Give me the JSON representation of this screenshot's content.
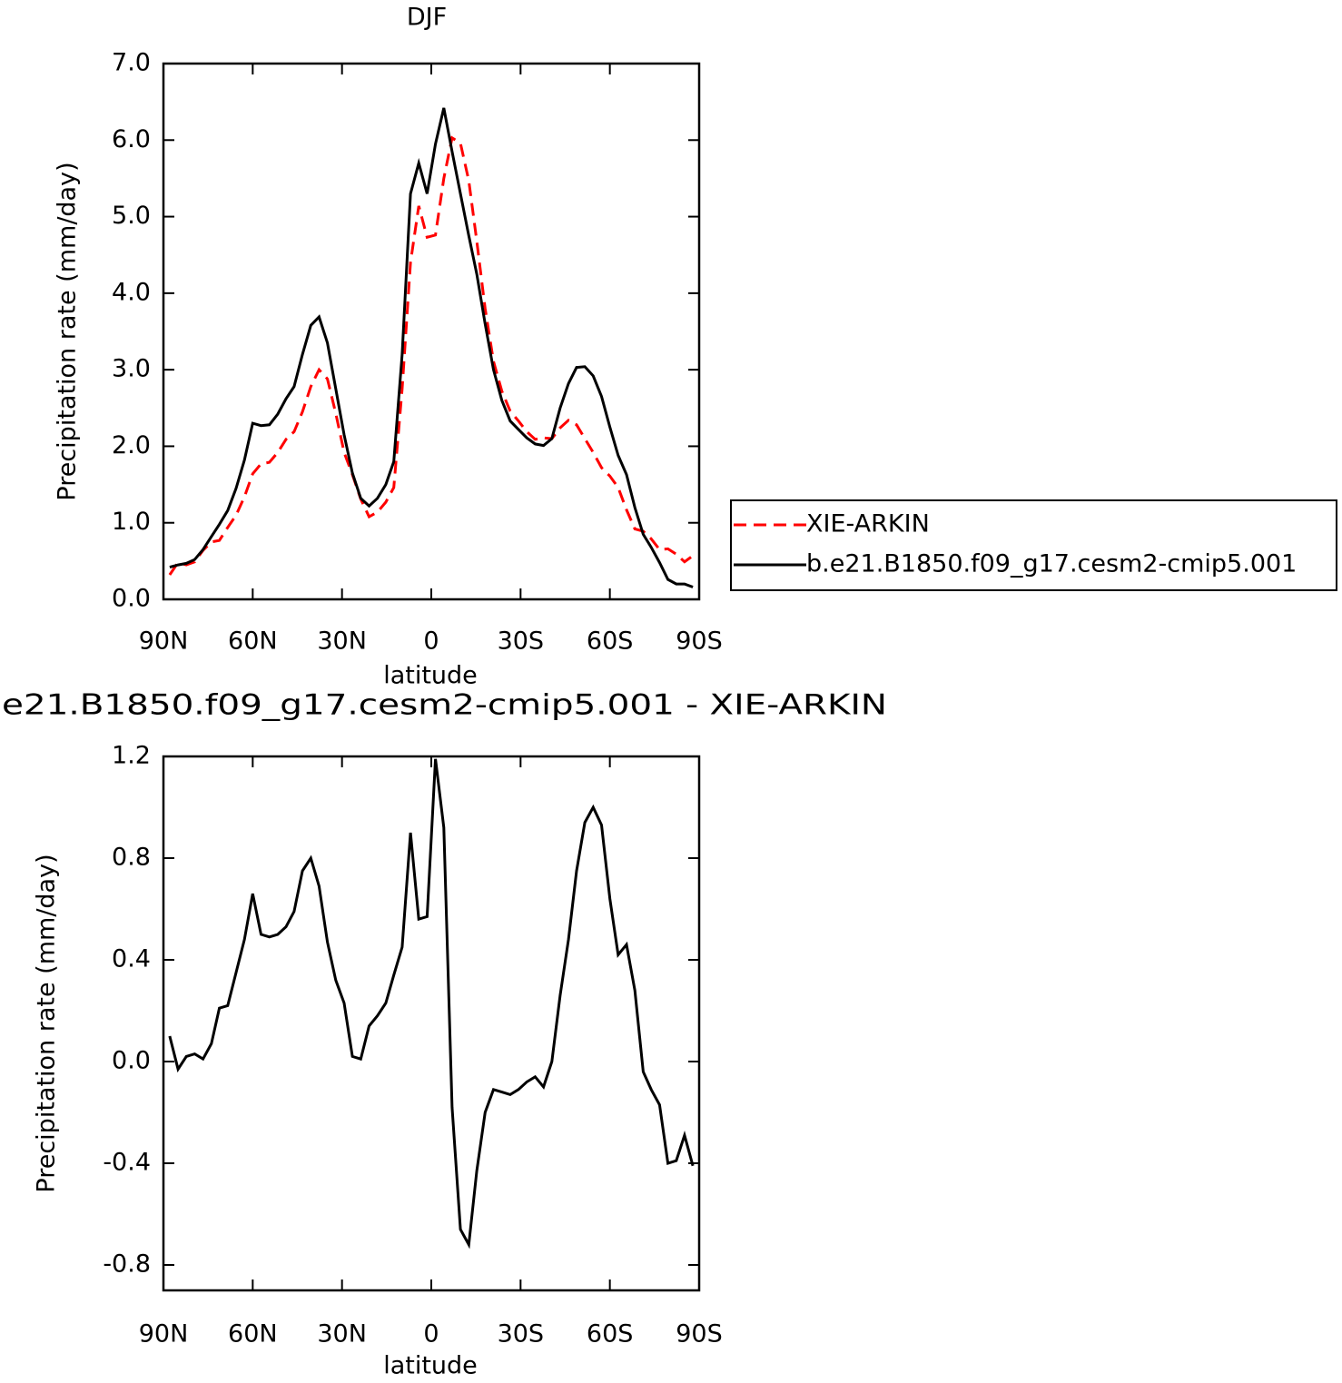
{
  "chart_data": [
    {
      "type": "line",
      "title": "DJF",
      "xlabel": "latitude",
      "ylabel": "Precipitation rate (mm/day)",
      "x": [
        87.9,
        85.1,
        82.3,
        79.5,
        76.7,
        73.9,
        71.2,
        68.4,
        65.6,
        62.8,
        60.0,
        57.2,
        54.4,
        51.6,
        48.8,
        46.1,
        43.3,
        40.5,
        37.7,
        34.9,
        32.1,
        29.3,
        26.5,
        23.7,
        20.9,
        18.1,
        15.3,
        12.6,
        9.8,
        7.0,
        4.2,
        1.4,
        -1.4,
        -4.2,
        -7.0,
        -9.8,
        -12.6,
        -15.3,
        -18.1,
        -20.9,
        -23.7,
        -26.5,
        -29.3,
        -32.1,
        -34.9,
        -37.7,
        -40.5,
        -43.3,
        -46.1,
        -48.8,
        -51.6,
        -54.4,
        -57.2,
        -60.0,
        -62.8,
        -65.6,
        -68.4,
        -71.2,
        -73.9,
        -76.7,
        -79.5,
        -82.3,
        -85.1,
        -87.9
      ],
      "xlim": [
        90,
        -90
      ],
      "xticks": [
        {
          "value": 90,
          "label": "90N"
        },
        {
          "value": 60,
          "label": "60N"
        },
        {
          "value": 30,
          "label": "30N"
        },
        0,
        {
          "value": -30,
          "label": "30S"
        },
        {
          "value": -60,
          "label": "60S"
        },
        {
          "value": -90,
          "label": "90S"
        }
      ],
      "ylim": [
        0,
        7
      ],
      "yticks": [
        {
          "value": 0,
          "label": "0.0"
        },
        {
          "value": 1,
          "label": "1.0"
        },
        {
          "value": 2,
          "label": "2.0"
        },
        {
          "value": 3,
          "label": "3.0"
        },
        {
          "value": 4,
          "label": "4.0"
        },
        {
          "value": 5,
          "label": "5.0"
        },
        {
          "value": 6,
          "label": "6.0"
        },
        {
          "value": 7,
          "label": "7.0"
        }
      ],
      "series": [
        {
          "name": "XIE-ARKIN",
          "color": "#ff0000",
          "line_style": "dashed",
          "values": [
            0.32,
            0.48,
            0.45,
            0.49,
            0.64,
            0.75,
            0.77,
            0.94,
            1.1,
            1.34,
            1.64,
            1.77,
            1.79,
            1.92,
            2.09,
            2.19,
            2.45,
            2.78,
            3.0,
            2.88,
            2.43,
            1.92,
            1.63,
            1.31,
            1.08,
            1.14,
            1.27,
            1.46,
            2.75,
            4.4,
            5.14,
            4.73,
            4.76,
            5.5,
            6.03,
            5.96,
            5.47,
            4.68,
            3.8,
            3.11,
            2.72,
            2.46,
            2.33,
            2.19,
            2.09,
            2.11,
            2.1,
            2.24,
            2.34,
            2.28,
            2.1,
            1.92,
            1.72,
            1.61,
            1.46,
            1.17,
            0.92,
            0.89,
            0.79,
            0.65,
            0.66,
            0.59,
            0.49,
            0.57
          ]
        },
        {
          "name": "b.e21.B1850.f09_g17.cesm2-cmip5.001",
          "color": "#000000",
          "line_style": "solid",
          "values": [
            0.42,
            0.45,
            0.47,
            0.52,
            0.65,
            0.82,
            0.98,
            1.16,
            1.45,
            1.82,
            2.3,
            2.27,
            2.28,
            2.42,
            2.62,
            2.78,
            3.2,
            3.58,
            3.69,
            3.35,
            2.75,
            2.15,
            1.65,
            1.32,
            1.22,
            1.32,
            1.5,
            1.8,
            3.2,
            5.3,
            5.7,
            5.3,
            5.95,
            6.42,
            5.85,
            5.3,
            4.75,
            4.25,
            3.6,
            3.0,
            2.6,
            2.33,
            2.22,
            2.11,
            2.03,
            2.01,
            2.1,
            2.5,
            2.82,
            3.03,
            3.04,
            2.92,
            2.65,
            2.25,
            1.88,
            1.63,
            1.2,
            0.85,
            0.68,
            0.48,
            0.26,
            0.2,
            0.2,
            0.16
          ]
        }
      ]
    },
    {
      "type": "line",
      "title": "e21.B1850.f09_g17.cesm2-cmip5.001 - XIE-ARKIN",
      "xlabel": "latitude",
      "ylabel": "Precipitation rate (mm/day)",
      "x": [
        87.9,
        85.1,
        82.3,
        79.5,
        76.7,
        73.9,
        71.2,
        68.4,
        65.6,
        62.8,
        60.0,
        57.2,
        54.4,
        51.6,
        48.8,
        46.1,
        43.3,
        40.5,
        37.7,
        34.9,
        32.1,
        29.3,
        26.5,
        23.7,
        20.9,
        18.1,
        15.3,
        12.6,
        9.8,
        7.0,
        4.2,
        1.4,
        -1.4,
        -4.2,
        -7.0,
        -9.8,
        -12.6,
        -15.3,
        -18.1,
        -20.9,
        -23.7,
        -26.5,
        -29.3,
        -32.1,
        -34.9,
        -37.7,
        -40.5,
        -43.3,
        -46.1,
        -48.8,
        -51.6,
        -54.4,
        -57.2,
        -60.0,
        -62.8,
        -65.6,
        -68.4,
        -71.2,
        -73.9,
        -76.7,
        -79.5,
        -82.3,
        -85.1,
        -87.9
      ],
      "xlim": [
        90,
        -90
      ],
      "xticks": [
        {
          "value": 90,
          "label": "90N"
        },
        {
          "value": 60,
          "label": "60N"
        },
        {
          "value": 30,
          "label": "30N"
        },
        0,
        {
          "value": -30,
          "label": "30S"
        },
        {
          "value": -60,
          "label": "60S"
        },
        {
          "value": -90,
          "label": "90S"
        }
      ],
      "ylim": [
        -0.9,
        1.2
      ],
      "yticks": [
        -0.8,
        -0.4,
        {
          "value": 0,
          "label": "0.0"
        },
        0.4,
        0.8,
        1.2
      ],
      "color": "#000000",
      "values": [
        0.1,
        -0.03,
        0.02,
        0.03,
        0.01,
        0.07,
        0.21,
        0.22,
        0.35,
        0.48,
        0.66,
        0.5,
        0.49,
        0.5,
        0.53,
        0.59,
        0.75,
        0.8,
        0.69,
        0.47,
        0.32,
        0.23,
        0.02,
        0.01,
        0.14,
        0.18,
        0.23,
        0.34,
        0.45,
        0.9,
        0.56,
        0.57,
        1.19,
        0.92,
        -0.18,
        -0.66,
        -0.72,
        -0.43,
        -0.2,
        -0.11,
        -0.12,
        -0.13,
        -0.11,
        -0.08,
        -0.06,
        -0.1,
        0.0,
        0.26,
        0.48,
        0.75,
        0.94,
        1.0,
        0.93,
        0.64,
        0.42,
        0.46,
        0.28,
        -0.04,
        -0.11,
        -0.17,
        -0.4,
        -0.39,
        -0.29,
        -0.41
      ]
    }
  ]
}
